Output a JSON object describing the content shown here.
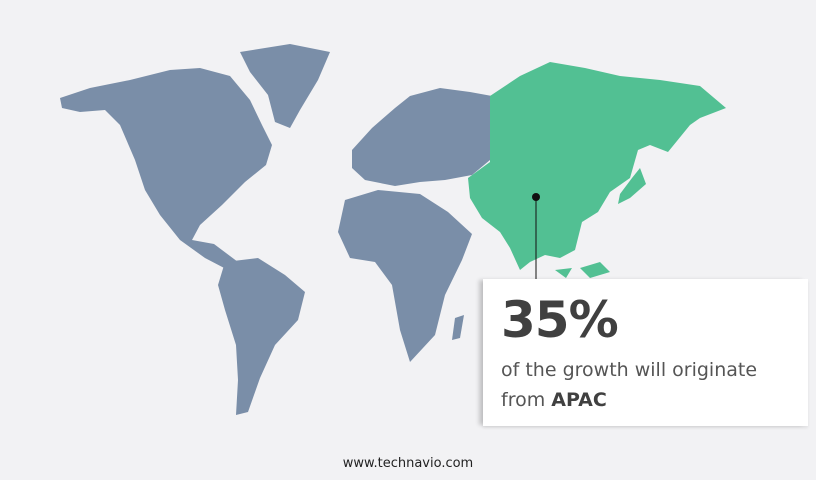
{
  "colors": {
    "background": "#f2f2f4",
    "map_gray": "#7a8ea8",
    "highlight": "#52c093",
    "text": "#404040"
  },
  "highlight_region": "APAC",
  "callout": {
    "value": "35%",
    "text": "of the growth will originate from",
    "region": "APAC"
  },
  "footer": {
    "site": "www.technavio.com"
  }
}
